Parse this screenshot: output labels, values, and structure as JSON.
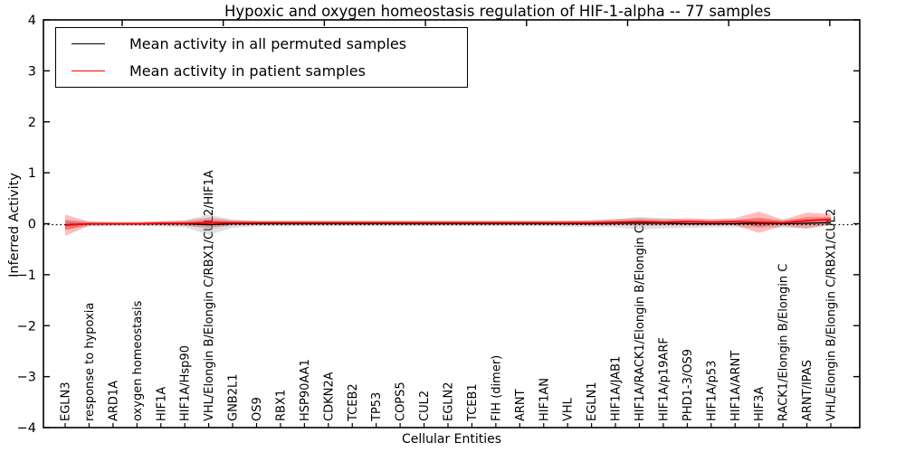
{
  "chart": {
    "title": "Hypoxic and oxygen homeostasis regulation of HIF-1-alpha -- 77 samples",
    "xlabel": "Cellular Entities",
    "ylabel": "Inferred Activity",
    "legend": [
      "Mean activity in all permuted samples",
      "Mean activity in patient samples"
    ],
    "colors": {
      "permuted_line": "#000000",
      "patient_line": "#ff0000",
      "permuted_band": "#999999",
      "patient_band": "#ff0000",
      "zero_line": "#000000"
    }
  },
  "chart_data": {
    "type": "line",
    "title": "Hypoxic and oxygen homeostasis regulation of HIF-1-alpha -- 77 samples",
    "xlabel": "Cellular Entities",
    "ylabel": "Inferred Activity",
    "ylim": [
      -4,
      4
    ],
    "ytick_labels": [
      "4",
      "3",
      "2",
      "1",
      "0",
      "−1",
      "−2",
      "−3",
      "−4"
    ],
    "ytick_values": [
      4,
      3,
      2,
      1,
      0,
      -1,
      -2,
      -3,
      -4
    ],
    "legend_position": "upper left",
    "grid": false,
    "sample_count": 77,
    "categories": [
      "EGLN3",
      "response to hypoxia",
      "ARD1A",
      "oxygen homeostasis",
      "HIF1A",
      "HIF1A/Hsp90",
      "VHL/Elongin B/Elongin C/RBX1/CUL2/HIF1A",
      "GNB2L1",
      "OS9",
      "RBX1",
      "HSP90AA1",
      "CDKN2A",
      "TCEB2",
      "TP53",
      "COPS5",
      "CUL2",
      "EGLN2",
      "TCEB1",
      "FIH (dimer)",
      "ARNT",
      "HIF1AN",
      "VHL",
      "EGLN1",
      "HIF1A/JAB1",
      "HIF1A/RACK1/Elongin B/Elongin C",
      "HIF1A/p19ARF",
      "PHD1-3/OS9",
      "HIF1A/p53",
      "HIF1A/ARNT",
      "HIF3A",
      "RACK1/Elongin B/Elongin C",
      "ARNT/IPAS",
      "VHL/Elongin B/Elongin C/RBX1/CUL2"
    ],
    "series": [
      {
        "name": "Mean activity in all permuted samples",
        "values": [
          -0.02,
          0,
          0,
          0,
          0,
          0,
          -0.02,
          0,
          0,
          0,
          0,
          0,
          0,
          0,
          0,
          0,
          0,
          0,
          0,
          0,
          0,
          0,
          0,
          0.01,
          0.01,
          0.01,
          0,
          0,
          0,
          0.01,
          0,
          0.01,
          0.02
        ],
        "band_halfwidth": [
          0.1,
          0.05,
          0.04,
          0.04,
          0.05,
          0.07,
          0.2,
          0.08,
          0.05,
          0.05,
          0.05,
          0.05,
          0.05,
          0.05,
          0.05,
          0.05,
          0.05,
          0.05,
          0.05,
          0.05,
          0.05,
          0.06,
          0.06,
          0.08,
          0.12,
          0.1,
          0.08,
          0.07,
          0.07,
          0.09,
          0.08,
          0.09,
          0.06
        ]
      },
      {
        "name": "Mean activity in patient samples",
        "values": [
          -0.03,
          0,
          0,
          0,
          0.01,
          0.01,
          0.02,
          0.02,
          0.02,
          0.02,
          0.02,
          0.02,
          0.02,
          0.02,
          0.02,
          0.02,
          0.02,
          0.02,
          0.02,
          0.02,
          0.02,
          0.02,
          0.02,
          0.03,
          0.04,
          0.03,
          0.04,
          0.03,
          0.04,
          0.03,
          0.02,
          0.06,
          0.09
        ],
        "band_halfwidth": [
          0.21,
          0.04,
          0.03,
          0.03,
          0.04,
          0.05,
          0.1,
          0.05,
          0.04,
          0.04,
          0.04,
          0.04,
          0.04,
          0.04,
          0.04,
          0.04,
          0.04,
          0.04,
          0.04,
          0.04,
          0.04,
          0.04,
          0.05,
          0.06,
          0.07,
          0.06,
          0.07,
          0.06,
          0.07,
          0.21,
          0.06,
          0.16,
          0.1
        ]
      }
    ]
  }
}
